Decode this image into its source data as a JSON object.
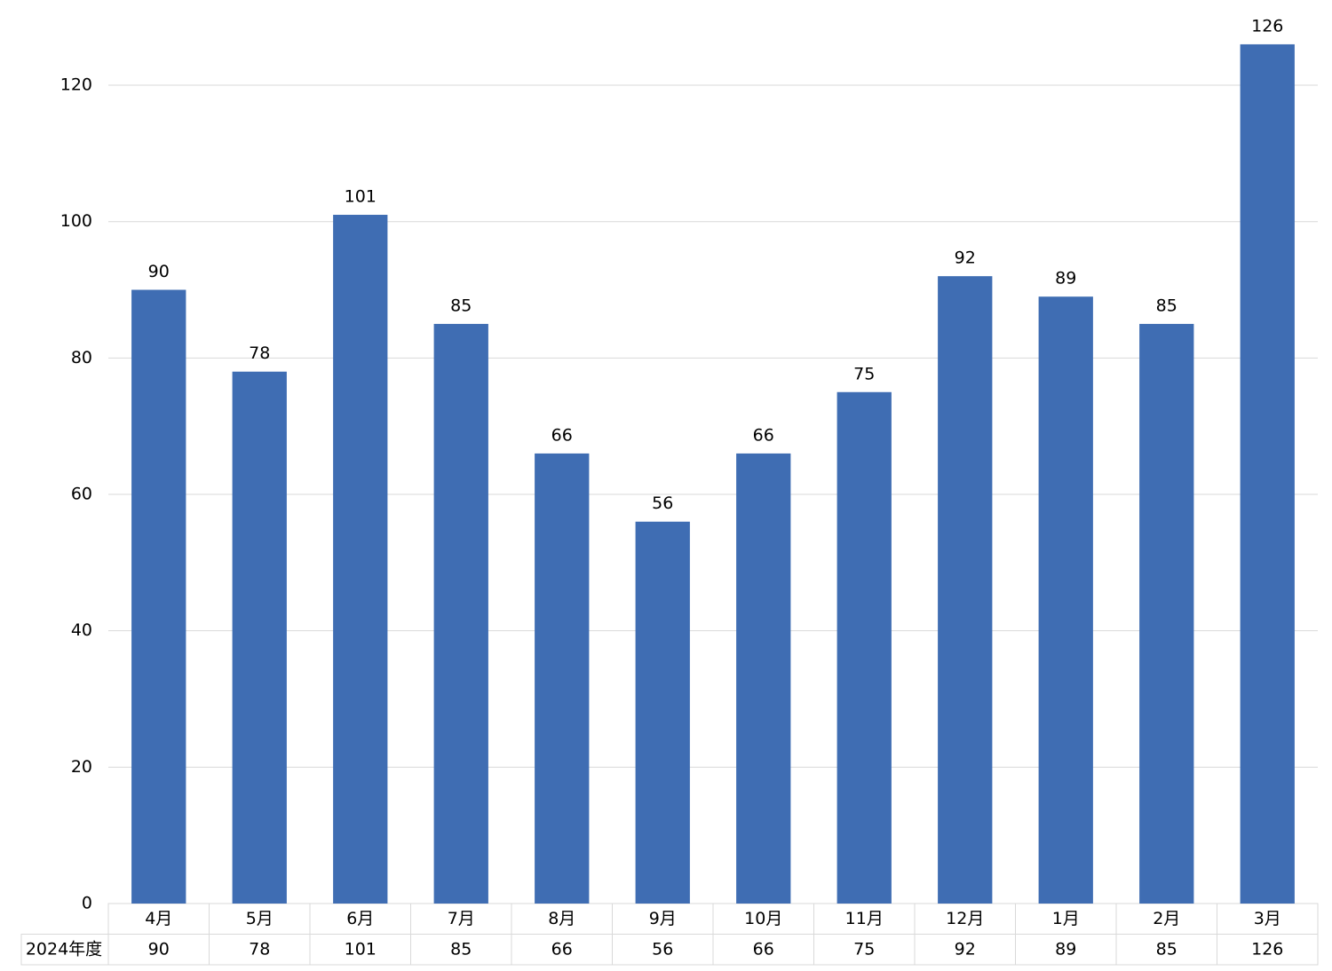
{
  "chart_data": {
    "type": "bar",
    "categories": [
      "4月",
      "5月",
      "6月",
      "7月",
      "8月",
      "9月",
      "10月",
      "11月",
      "12月",
      "1月",
      "2月",
      "3月"
    ],
    "series": [
      {
        "name": "2024年度",
        "color": "#3f6db3",
        "values": [
          90,
          78,
          101,
          85,
          66,
          56,
          66,
          75,
          92,
          89,
          85,
          126
        ]
      }
    ],
    "ylim": [
      0,
      130
    ],
    "yticks": [
      0,
      20,
      40,
      60,
      80,
      100,
      120
    ],
    "grid": true
  }
}
